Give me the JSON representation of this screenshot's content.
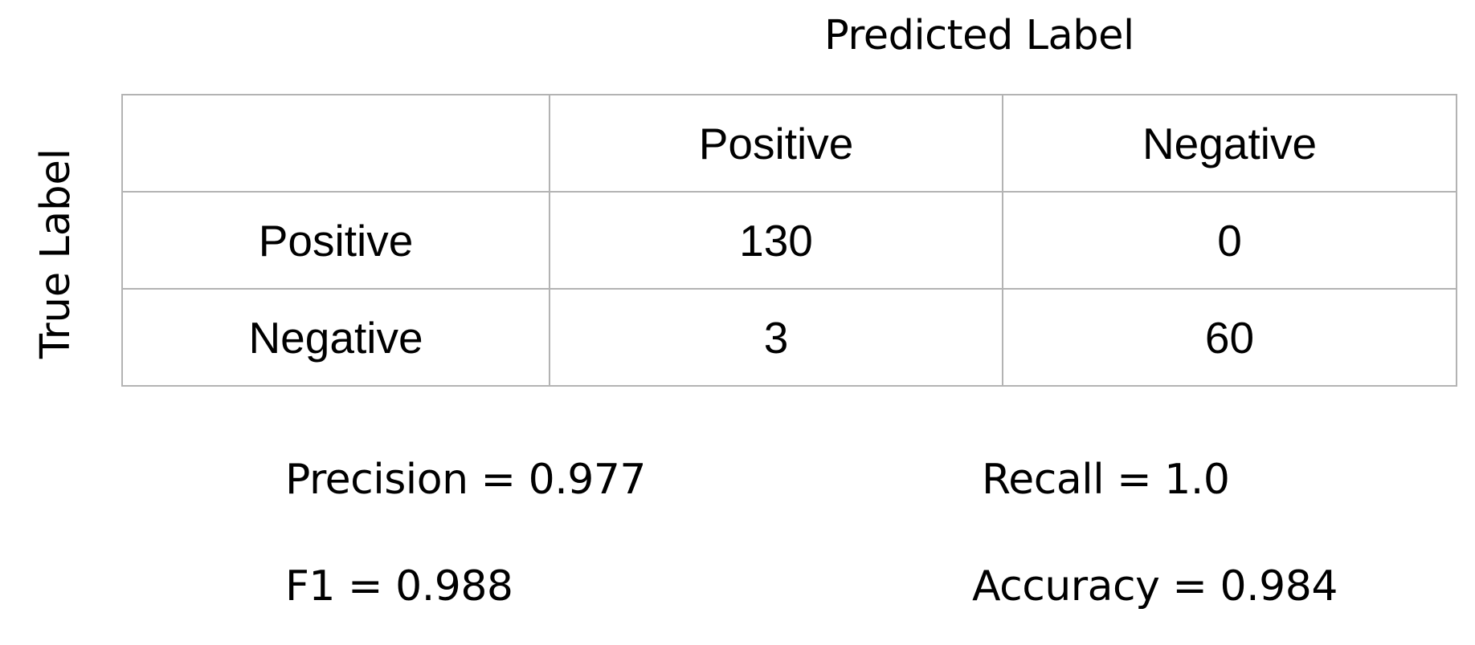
{
  "axis_titles": {
    "predicted": "Predicted Label",
    "true": "True Label"
  },
  "matrix": {
    "column_headers": [
      "",
      "Positive",
      "Negative"
    ],
    "rows": [
      {
        "label": "Positive",
        "values": [
          "130",
          "0"
        ]
      },
      {
        "label": "Negative",
        "values": [
          "3",
          "60"
        ]
      }
    ]
  },
  "metrics": {
    "precision": "Precision = 0.977",
    "recall": "Recall = 1.0",
    "f1": "F1 = 0.988",
    "accuracy": "Accuracy = 0.984"
  }
}
